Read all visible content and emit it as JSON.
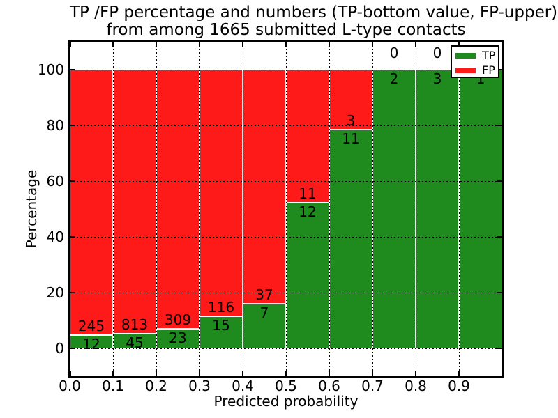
{
  "chart_data": {
    "type": "bar",
    "variant": "stacked-percentage-histogram",
    "title_line1": "TP /FP percentage and numbers (TP-bottom value, FP-upper)",
    "title_line2": "from among 1665 submitted L-type contacts",
    "xlabel": "Predicted probability",
    "ylabel": "Percentage",
    "x_tick_labels": [
      "0.0",
      "0.1",
      "0.2",
      "0.3",
      "0.4",
      "0.5",
      "0.6",
      "0.7",
      "0.8",
      "0.9"
    ],
    "y_tick_labels": [
      "0",
      "20",
      "40",
      "60",
      "80",
      "100"
    ],
    "xlim": [
      0.0,
      1.0
    ],
    "ylim": [
      -10,
      110
    ],
    "grid": "dotted, both axes, drawn above bars",
    "total_contacts": 1665,
    "colors": {
      "tp": "#1f8b1f",
      "fp": "#ff1a1a",
      "bar_edge": "#ffffff",
      "grid": "#000000"
    },
    "legend": {
      "position": "upper right",
      "entries": [
        {
          "label": "TP",
          "color": "#1f8b1f"
        },
        {
          "label": "FP",
          "color": "#ff1a1a"
        }
      ]
    },
    "bins": [
      {
        "x0": 0.0,
        "x1": 0.1,
        "tp": 12,
        "fp": 245
      },
      {
        "x0": 0.1,
        "x1": 0.2,
        "tp": 45,
        "fp": 813
      },
      {
        "x0": 0.2,
        "x1": 0.3,
        "tp": 23,
        "fp": 309
      },
      {
        "x0": 0.3,
        "x1": 0.4,
        "tp": 15,
        "fp": 116
      },
      {
        "x0": 0.4,
        "x1": 0.5,
        "tp": 7,
        "fp": 37
      },
      {
        "x0": 0.5,
        "x1": 0.6,
        "tp": 12,
        "fp": 11
      },
      {
        "x0": 0.6,
        "x1": 0.7,
        "tp": 11,
        "fp": 3
      },
      {
        "x0": 0.7,
        "x1": 0.8,
        "tp": 2,
        "fp": 0
      },
      {
        "x0": 0.8,
        "x1": 0.9,
        "tp": 3,
        "fp": 0
      },
      {
        "x0": 0.9,
        "x1": 1.0,
        "tp": 1,
        "fp": 0,
        "fp_label_visible": false
      }
    ]
  }
}
